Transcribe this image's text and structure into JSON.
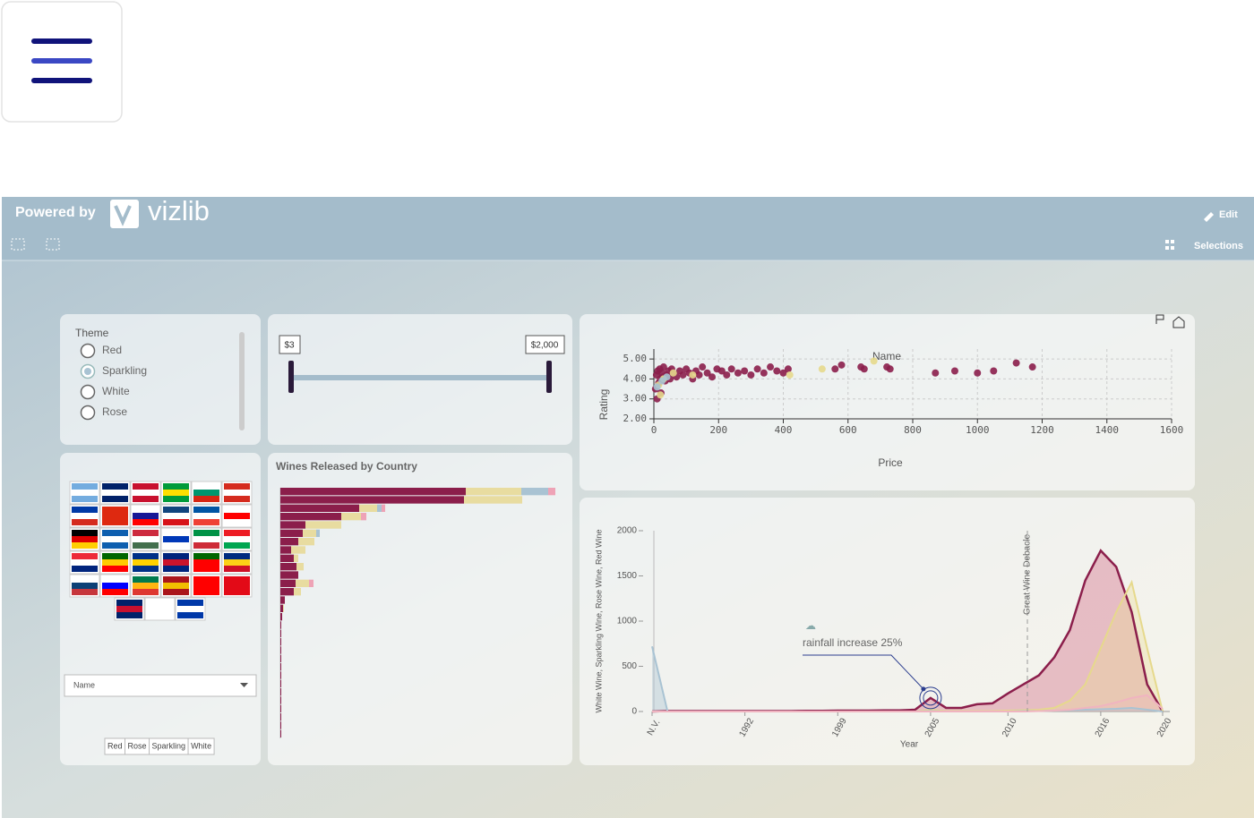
{
  "header": {
    "powered_by": "Powered by",
    "logo": "vizlib",
    "edit": "Edit",
    "selections": "Selections"
  },
  "theme_filter": {
    "title": "Theme",
    "options": [
      "Red",
      "Sparkling",
      "White",
      "Rose"
    ],
    "selected": "Sparkling"
  },
  "price_slider": {
    "min_label": "$3",
    "max_label": "$2,000"
  },
  "country_filter": {
    "dropdown": "Name",
    "buttons": [
      "Red",
      "Rose",
      "Sparkling",
      "White"
    ]
  },
  "chart_data": [
    {
      "type": "scatter",
      "x_label": "Price",
      "y_label": "Rating",
      "annotation": "Name",
      "xlim": [
        0,
        1600
      ],
      "xticks": [
        0,
        200,
        400,
        600,
        800,
        1000,
        1200,
        1400,
        1600
      ],
      "ylim": [
        2,
        5.5
      ],
      "yticks": [
        {
          "value": 2,
          "label": "2.00"
        },
        {
          "value": 3,
          "label": "3.00"
        },
        {
          "value": 4,
          "label": "4.00"
        },
        {
          "value": 5,
          "label": "5.00"
        }
      ],
      "grid": true,
      "series": [
        {
          "color": "#8b1e4b",
          "x": [
            5,
            8,
            10,
            12,
            15,
            18,
            20,
            22,
            25,
            28,
            30,
            35,
            40,
            45,
            50,
            55,
            60,
            70,
            80,
            90,
            100,
            110,
            120,
            130,
            140,
            150,
            165,
            180,
            195,
            210,
            225,
            240,
            260,
            280,
            300,
            320,
            340,
            360,
            380,
            400,
            415,
            560,
            580,
            640,
            650,
            720,
            730,
            870,
            930,
            1000,
            1050,
            1120,
            1170
          ],
          "values": [
            3.5,
            4.2,
            3.0,
            4.4,
            3.8,
            4.5,
            4.0,
            3.3,
            4.3,
            4.1,
            4.6,
            3.9,
            4.2,
            4.4,
            4.0,
            4.5,
            4.3,
            4.1,
            4.4,
            4.2,
            4.5,
            4.3,
            4.0,
            4.4,
            4.2,
            4.6,
            4.3,
            4.1,
            4.5,
            4.4,
            4.2,
            4.5,
            4.3,
            4.4,
            4.2,
            4.5,
            4.3,
            4.6,
            4.4,
            4.3,
            4.5,
            4.5,
            4.7,
            4.6,
            4.5,
            4.6,
            4.5,
            4.3,
            4.4,
            4.3,
            4.4,
            4.8,
            4.6
          ]
        },
        {
          "color": "#e6d98c",
          "x": [
            15,
            20,
            30,
            60,
            120,
            420,
            520,
            680
          ],
          "values": [
            3.7,
            3.2,
            4.0,
            4.3,
            4.2,
            4.2,
            4.5,
            4.9
          ]
        },
        {
          "color": "#a9c3d3",
          "x": [
            10,
            25,
            40
          ],
          "values": [
            3.6,
            3.9,
            4.1
          ]
        }
      ]
    },
    {
      "type": "bar",
      "orientation": "horizontal",
      "stacked": true,
      "title": "Wines Released by Country",
      "categories": [
        null,
        null,
        null,
        null,
        null,
        null,
        null,
        null,
        null,
        null,
        null,
        null,
        null,
        null,
        null,
        null,
        null,
        null,
        null,
        null,
        null,
        null,
        null,
        null,
        null,
        null,
        null,
        null,
        null,
        null
      ],
      "series": [
        {
          "color": "#8b1e4b",
          "values": [
            207,
            205,
            88,
            68,
            28,
            25,
            20,
            12,
            15,
            18,
            20,
            17,
            15,
            5,
            3,
            2,
            1,
            1,
            1,
            1,
            1,
            1,
            1,
            1,
            1,
            1,
            1,
            1,
            1,
            1
          ]
        },
        {
          "color": "#e8dca0",
          "values": [
            62,
            65,
            20,
            22,
            40,
            15,
            18,
            16,
            5,
            8,
            0,
            15,
            8,
            0,
            1,
            0,
            0,
            0,
            0,
            0,
            0,
            0,
            0,
            0,
            0,
            0,
            0,
            0,
            0,
            0
          ]
        },
        {
          "color": "#a9c3d3",
          "values": [
            30,
            0,
            5,
            0,
            0,
            4,
            0,
            0,
            0,
            0,
            0,
            0,
            0,
            0,
            0,
            0,
            0,
            0,
            0,
            0,
            0,
            0,
            0,
            0,
            0,
            0,
            0,
            0,
            0,
            0
          ]
        },
        {
          "color": "#eea3b6",
          "values": [
            8,
            0,
            4,
            6,
            0,
            0,
            0,
            0,
            0,
            0,
            0,
            5,
            0,
            0,
            0,
            0,
            0,
            0,
            0,
            0,
            0,
            0,
            0,
            0,
            0,
            0,
            0,
            0,
            0,
            0
          ]
        }
      ]
    },
    {
      "type": "area",
      "x_label": "Year",
      "y_label": "White Wine, Sparkling Wine, Rose Wine, Red Wine",
      "categories": [
        "N.V.",
        null,
        null,
        null,
        null,
        null,
        "1992",
        null,
        null,
        null,
        null,
        null,
        "1999",
        null,
        null,
        null,
        null,
        null,
        "2005",
        null,
        null,
        null,
        null,
        "2010",
        null,
        null,
        null,
        null,
        null,
        "2016",
        null,
        null,
        null,
        "2020"
      ],
      "ylim": [
        0,
        2000
      ],
      "yticks": [
        0,
        500,
        1000,
        1500,
        2000
      ],
      "annotations": [
        "rainfall increase 25%",
        "Great Wine Debacle"
      ],
      "series": [
        {
          "color": "#8b1e4b",
          "fill": "rgba(205,90,120,0.35)",
          "values": [
            0,
            5,
            5,
            5,
            5,
            5,
            5,
            5,
            5,
            5,
            8,
            8,
            10,
            10,
            10,
            12,
            12,
            20,
            150,
            40,
            40,
            80,
            90,
            200,
            300,
            400,
            600,
            900,
            1450,
            1780,
            1600,
            1100,
            300,
            0
          ]
        },
        {
          "color": "#e6d98c",
          "fill": "rgba(235,220,150,0.35)",
          "values": [
            0,
            0,
            0,
            0,
            0,
            0,
            0,
            0,
            0,
            0,
            0,
            0,
            0,
            0,
            0,
            0,
            0,
            0,
            20,
            5,
            5,
            5,
            5,
            10,
            15,
            20,
            40,
            120,
            300,
            700,
            1100,
            1430,
            700,
            0
          ]
        },
        {
          "color": "#a9c3d3",
          "fill": "rgba(169,195,211,0.4)",
          "values": [
            720,
            0,
            0,
            0,
            0,
            0,
            0,
            0,
            0,
            0,
            0,
            0,
            0,
            0,
            0,
            0,
            0,
            0,
            5,
            0,
            0,
            0,
            0,
            0,
            5,
            5,
            10,
            15,
            20,
            25,
            30,
            40,
            20,
            0
          ]
        },
        {
          "color": "#f0b4c0",
          "fill": "rgba(240,180,192,0.25)",
          "values": [
            0,
            0,
            0,
            0,
            0,
            0,
            0,
            0,
            0,
            0,
            0,
            0,
            0,
            0,
            0,
            0,
            0,
            0,
            0,
            0,
            0,
            0,
            0,
            0,
            0,
            5,
            10,
            20,
            40,
            60,
            100,
            150,
            180,
            30
          ]
        }
      ]
    }
  ]
}
